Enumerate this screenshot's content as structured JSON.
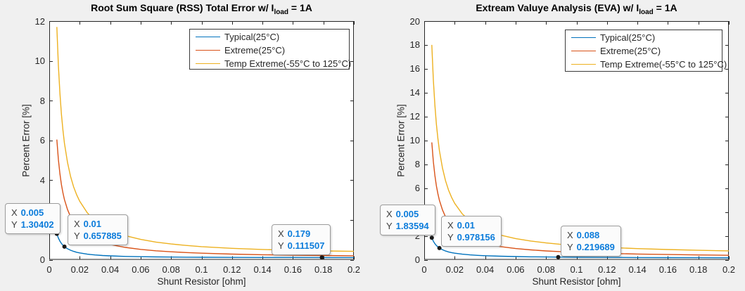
{
  "figure": {
    "bg": "#f0f0f0",
    "plot_bg": "#ffffff",
    "axis_color": "#262626",
    "tip_value_color": "#0b7cdb",
    "tip_x_key": "X",
    "tip_y_key": "Y"
  },
  "chart_data": [
    {
      "type": "line",
      "title": "Root Sum Square (RSS) Total Error w/ I_load = 1A",
      "title_pre": "Root Sum Square (RSS) Total Error w/ I",
      "title_sub": "load",
      "title_post": " = 1A",
      "xlabel": "Shunt Resistor [ohm]",
      "ylabel": "Percent Error [%]",
      "xlim": [
        0,
        0.2
      ],
      "ylim": [
        0,
        12
      ],
      "grid": false,
      "legend_position": "upper-right-inside",
      "xticks": [
        0,
        0.02,
        0.04,
        0.06,
        0.08,
        0.1,
        0.12,
        0.14,
        0.16,
        0.18,
        0.2
      ],
      "xtick_labels": [
        "0",
        "0.02",
        "0.04",
        "0.06",
        "0.08",
        "0.1",
        "0.12",
        "0.14",
        "0.16",
        "0.18",
        "0.2"
      ],
      "yticks": [
        0,
        2,
        4,
        6,
        8,
        10,
        12
      ],
      "ytick_labels": [
        "0",
        "2",
        "4",
        "6",
        "8",
        "10",
        "12"
      ],
      "series": [
        {
          "name": "Typical(25°C)",
          "color": "#0072BD",
          "x": [
            0.005,
            0.006,
            0.007,
            0.008,
            0.009,
            0.01,
            0.012,
            0.014,
            0.016,
            0.018,
            0.02,
            0.025,
            0.03,
            0.035,
            0.04,
            0.05,
            0.06,
            0.07,
            0.08,
            0.09,
            0.1,
            0.12,
            0.14,
            0.16,
            0.18,
            0.2
          ],
          "y": [
            1.30402,
            1.0884,
            0.9345,
            0.8193,
            0.7298,
            0.657885,
            0.5518,
            0.476,
            0.4196,
            0.3761,
            0.3415,
            0.2804,
            0.2408,
            0.2133,
            0.1935,
            0.1671,
            0.1509,
            0.1402,
            0.1328,
            0.1274,
            0.1235,
            0.1182,
            0.1148,
            0.1126,
            0.111,
            0.1099
          ]
        },
        {
          "name": "Extreme(25°C)",
          "color": "#D95319",
          "x": [
            0.005,
            0.006,
            0.007,
            0.008,
            0.009,
            0.01,
            0.012,
            0.014,
            0.016,
            0.018,
            0.02,
            0.025,
            0.03,
            0.035,
            0.04,
            0.05,
            0.06,
            0.07,
            0.08,
            0.09,
            0.1,
            0.12,
            0.14,
            0.16,
            0.18,
            0.2
          ],
          "y": [
            6.0414,
            5.035,
            4.3163,
            3.7772,
            3.3581,
            3.0228,
            2.52,
            2.1611,
            1.892,
            1.6828,
            1.5156,
            1.215,
            1.015,
            0.8726,
            0.7661,
            0.6178,
            0.5199,
            0.4506,
            0.3993,
            0.3599,
            0.3288,
            0.2833,
            0.2519,
            0.2292,
            0.2123,
            0.1993
          ]
        },
        {
          "name": "Temp Extreme(-55°C to 125°C)",
          "color": "#EDB120",
          "x": [
            0.005,
            0.006,
            0.007,
            0.008,
            0.009,
            0.01,
            0.012,
            0.014,
            0.016,
            0.018,
            0.02,
            0.025,
            0.03,
            0.035,
            0.04,
            0.05,
            0.06,
            0.07,
            0.08,
            0.09,
            0.1,
            0.12,
            0.14,
            0.16,
            0.18,
            0.2
          ],
          "y": [
            11.7038,
            9.7546,
            8.3626,
            7.3187,
            6.5069,
            5.8577,
            4.8842,
            4.1893,
            3.6685,
            3.2638,
            2.9404,
            2.3592,
            1.9729,
            1.6981,
            1.4929,
            1.2078,
            1.0201,
            0.8879,
            0.7904,
            0.7159,
            0.6574,
            0.5724,
            0.5144,
            0.473,
            0.4423,
            0.419
          ]
        }
      ],
      "datatips": [
        {
          "x": "0.005",
          "y": "1.30402"
        },
        {
          "x": "0.01",
          "y": "0.657885"
        },
        {
          "x": "0.179",
          "y": "0.111507"
        }
      ]
    },
    {
      "type": "line",
      "title": "Extream Valuye Analysis (EVA) w/ I_load = 1A",
      "title_pre": "Extream Valuye Analysis (EVA) w/ I",
      "title_sub": "load",
      "title_post": " = 1A",
      "xlabel": "Shunt Resistor [ohm]",
      "ylabel": "Percent Error [%]",
      "xlim": [
        0,
        0.2
      ],
      "ylim": [
        0,
        20
      ],
      "grid": false,
      "legend_position": "upper-right-inside",
      "xticks": [
        0,
        0.02,
        0.04,
        0.06,
        0.08,
        0.1,
        0.12,
        0.14,
        0.16,
        0.18,
        0.2
      ],
      "xtick_labels": [
        "0",
        "0.02",
        "0.04",
        "0.06",
        "0.08",
        "0.1",
        "0.12",
        "0.14",
        "0.16",
        "0.18",
        "0.2"
      ],
      "yticks": [
        0,
        2,
        4,
        6,
        8,
        10,
        12,
        14,
        16,
        18,
        20
      ],
      "ytick_labels": [
        "0",
        "2",
        "4",
        "6",
        "8",
        "10",
        "12",
        "14",
        "16",
        "18",
        "20"
      ],
      "series": [
        {
          "name": "Typical(25°C)",
          "color": "#0072BD",
          "x": [
            0.005,
            0.006,
            0.007,
            0.008,
            0.009,
            0.01,
            0.012,
            0.014,
            0.016,
            0.018,
            0.02,
            0.025,
            0.03,
            0.035,
            0.04,
            0.05,
            0.06,
            0.07,
            0.08,
            0.09,
            0.1,
            0.12,
            0.14,
            0.16,
            0.18,
            0.2
          ],
          "y": [
            1.83594,
            1.55,
            1.34578,
            1.1926,
            1.07347,
            0.978156,
            0.83519,
            0.73308,
            0.65649,
            0.59692,
            0.54926,
            0.46349,
            0.4063,
            0.36545,
            0.33482,
            0.29193,
            0.26334,
            0.24291,
            0.2276,
            0.21568,
            0.20615,
            0.19185,
            0.18164,
            0.17398,
            0.16803,
            0.16326
          ]
        },
        {
          "name": "Extreme(25°C)",
          "color": "#D95319",
          "x": [
            0.005,
            0.006,
            0.007,
            0.008,
            0.009,
            0.01,
            0.012,
            0.014,
            0.016,
            0.018,
            0.02,
            0.025,
            0.03,
            0.035,
            0.04,
            0.05,
            0.06,
            0.07,
            0.08,
            0.09,
            0.1,
            0.12,
            0.14,
            0.16,
            0.18,
            0.2
          ],
          "y": [
            9.83,
            8.2133,
            7.0586,
            6.1925,
            5.5189,
            4.98,
            4.1717,
            3.5943,
            3.1613,
            2.8244,
            2.555,
            2.07,
            1.7467,
            1.5157,
            1.3425,
            1.1,
            0.9383,
            0.8229,
            0.7363,
            0.6689,
            0.615,
            0.5342,
            0.4764,
            0.4331,
            0.3994,
            0.3725
          ]
        },
        {
          "name": "Temp Extreme(-55°C to 125°C)",
          "color": "#EDB120",
          "x": [
            0.005,
            0.006,
            0.007,
            0.008,
            0.009,
            0.01,
            0.012,
            0.014,
            0.016,
            0.018,
            0.02,
            0.025,
            0.03,
            0.035,
            0.04,
            0.05,
            0.06,
            0.07,
            0.08,
            0.09,
            0.1,
            0.12,
            0.14,
            0.16,
            0.18,
            0.2
          ],
          "y": [
            18.0,
            15.05,
            12.9429,
            11.3625,
            10.1333,
            9.15,
            7.675,
            6.6214,
            5.8313,
            5.2167,
            4.725,
            3.84,
            3.25,
            2.8286,
            2.5125,
            2.07,
            1.775,
            1.5643,
            1.4063,
            1.2833,
            1.185,
            1.0375,
            0.9321,
            0.8531,
            0.7917,
            0.7425
          ]
        }
      ],
      "datatips": [
        {
          "x": "0.005",
          "y": "1.83594"
        },
        {
          "x": "0.01",
          "y": "0.978156"
        },
        {
          "x": "0.088",
          "y": "0.219689"
        }
      ]
    }
  ]
}
